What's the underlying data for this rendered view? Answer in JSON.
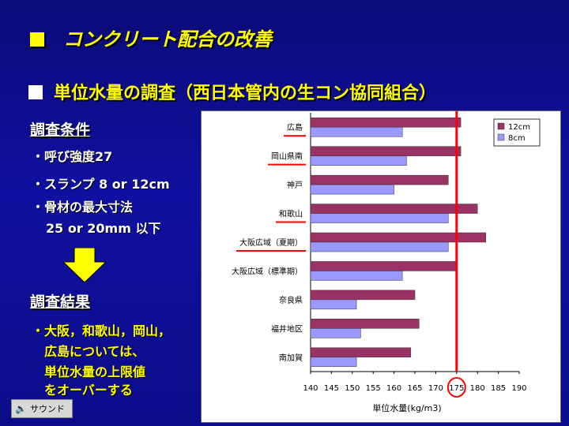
{
  "title": "コンクリート配合の改善",
  "subtitle": "単位水量の調査（西日本管内の生コン協同組合）",
  "conditions": {
    "heading": "調査条件",
    "items": [
      "・呼び強度27",
      "・スランプ 8 or 12cm",
      "・骨材の最大寸法",
      "25 or 20mm 以下"
    ]
  },
  "results": {
    "heading": "調査結果",
    "lines": [
      "・大阪，和歌山，岡山，",
      "広島については、",
      "単位水量の上限値",
      "をオーバーする"
    ]
  },
  "sound_button": "サウンド",
  "chart_data": {
    "type": "bar",
    "orientation": "horizontal",
    "categories": [
      "広島",
      "岡山県南",
      "神戸",
      "和歌山",
      "大阪広域（夏期）",
      "大阪広域（標準期）",
      "奈良県",
      "福井地区",
      "南加賀"
    ],
    "underlined_categories": [
      "広島",
      "岡山県南",
      "和歌山",
      "大阪広域（夏期）"
    ],
    "series": [
      {
        "name": "12cm",
        "color": "#993366",
        "values": [
          176,
          176,
          173,
          180,
          182,
          175,
          165,
          166,
          164
        ]
      },
      {
        "name": "8cm",
        "color": "#9999ff",
        "values": [
          162,
          163,
          160,
          173,
          173,
          162,
          151,
          152,
          151
        ]
      }
    ],
    "xlabel": "単位水量(kg/m3)",
    "ylabel": "",
    "xlim": [
      140,
      190
    ],
    "xticks": [
      140,
      145,
      150,
      155,
      160,
      165,
      170,
      175,
      180,
      185,
      190
    ],
    "reference_line": 175,
    "reference_color": "#ff0000",
    "legend_position": "top-right",
    "grid": false
  }
}
